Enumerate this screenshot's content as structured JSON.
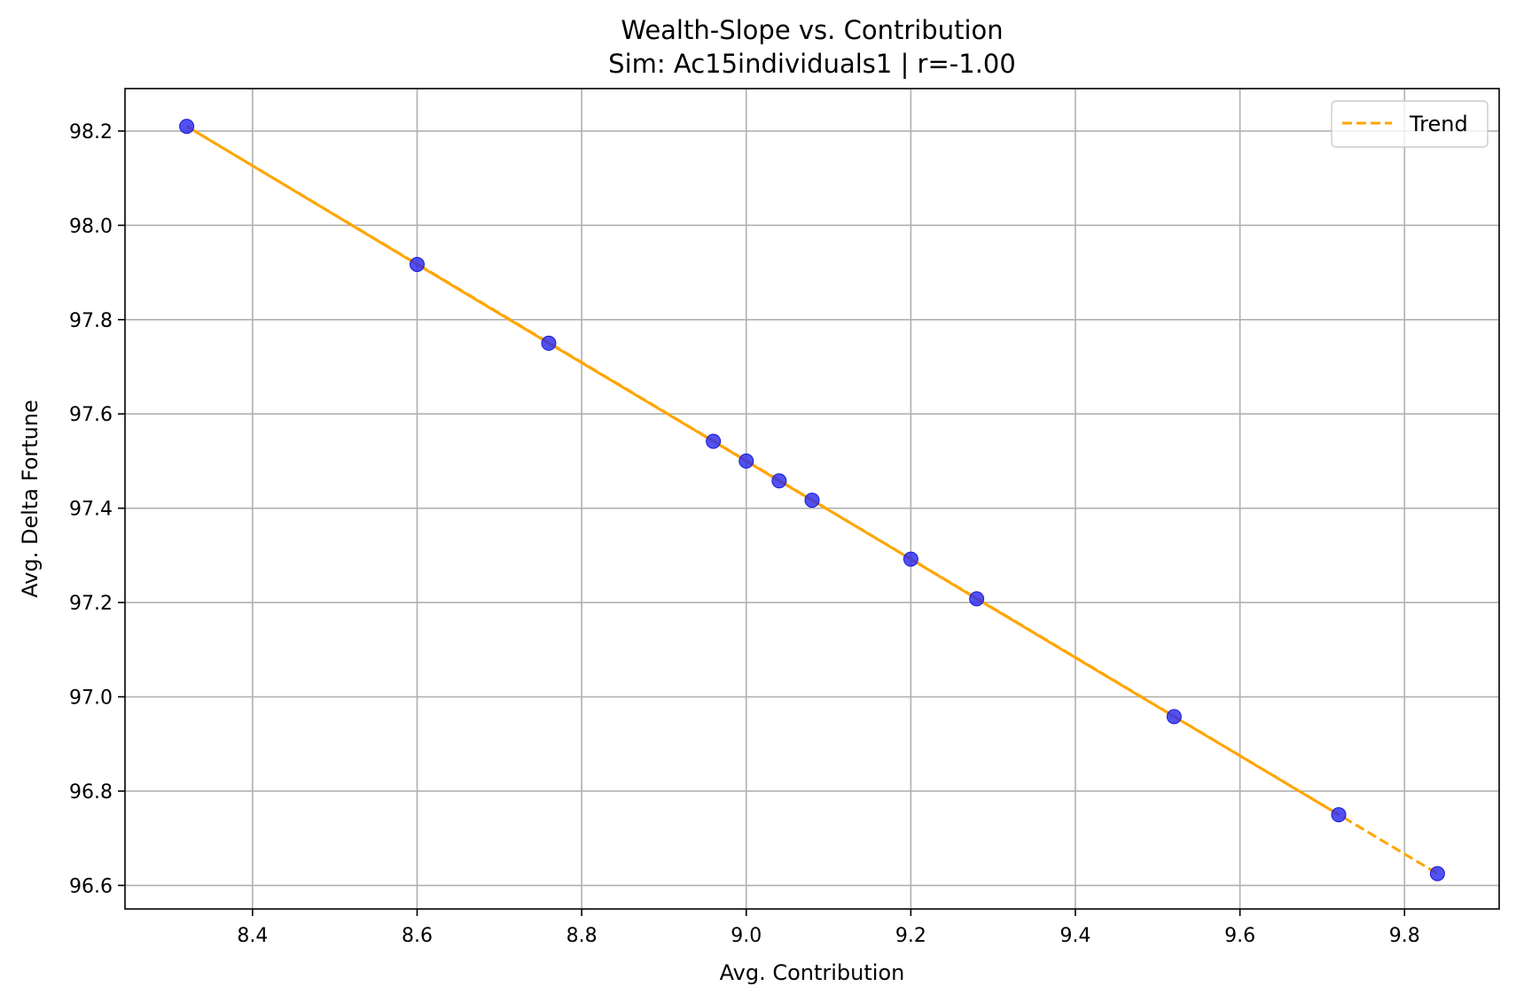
{
  "chart_data": {
    "type": "scatter",
    "title": "Wealth-Slope vs. Contribution",
    "subtitle": "Sim: Ac15individuals1 | r=-1.00",
    "xlabel": "Avg. Contribution",
    "ylabel": "Avg. Delta Fortune",
    "xlim": [
      8.245,
      9.915
    ],
    "ylim": [
      96.55,
      98.29
    ],
    "xticks": [
      "8.4",
      "8.6",
      "8.8",
      "9.0",
      "9.2",
      "9.4",
      "9.6",
      "9.8"
    ],
    "yticks": [
      "96.6",
      "96.8",
      "97.0",
      "97.2",
      "97.4",
      "97.6",
      "97.8",
      "98.0",
      "98.2"
    ],
    "grid": true,
    "legend_position": "top-right",
    "points": {
      "color": "#2b2bf0",
      "x": [
        8.32,
        8.6,
        8.76,
        8.96,
        9.0,
        9.04,
        9.08,
        9.2,
        9.28,
        9.52,
        9.72,
        9.84
      ],
      "y": [
        98.21,
        97.917,
        97.75,
        97.542,
        97.5,
        97.458,
        97.417,
        97.292,
        97.208,
        96.958,
        96.75,
        96.625
      ]
    },
    "series": [
      {
        "name": "Trend",
        "color": "#ffa500",
        "style": "dashed",
        "x": [
          8.32,
          9.84
        ],
        "y": [
          98.21,
          96.625
        ]
      }
    ],
    "solid_line": {
      "color": "#ffa500",
      "x": [
        8.32,
        8.6,
        8.76,
        8.96,
        9.0,
        9.04,
        9.08,
        9.2,
        9.28,
        9.52,
        9.72
      ],
      "y": [
        98.21,
        97.917,
        97.75,
        97.542,
        97.5,
        97.458,
        97.417,
        97.292,
        97.208,
        96.958,
        96.75
      ]
    }
  }
}
